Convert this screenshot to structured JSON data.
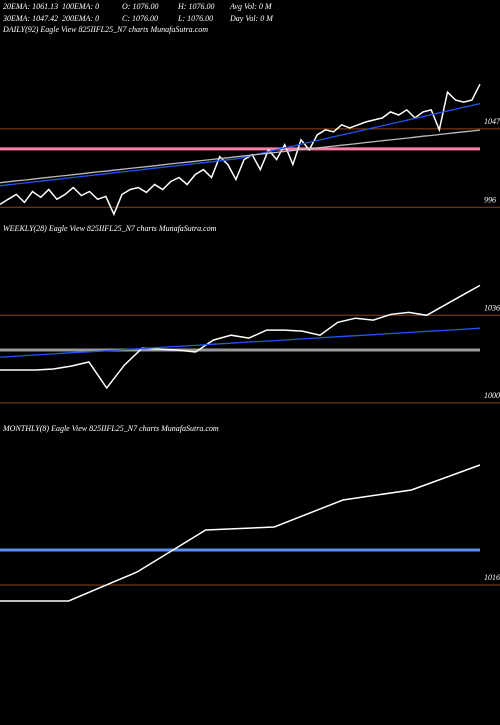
{
  "header": {
    "row1": [
      "20EMA: 1061.13",
      "100EMA: 0",
      "O: 1076.00",
      "H: 1076.00",
      "Avg Vol: 0  M"
    ],
    "row2": [
      "30EMA: 1047.42",
      "200EMA: 0",
      "C: 1076.00",
      "L: 1076.00",
      "Day Vol: 0  M"
    ]
  },
  "chart_data": [
    {
      "type": "line",
      "title": "DAILY(92) Eagle  View  825IIFL25_N7 charts MunafaSutra.com",
      "ylim": [
        991,
        1108
      ],
      "yticks": [
        1047,
        996
      ],
      "tick_color": "#8b4513",
      "reference_lines": [
        {
          "value": 1034,
          "color": "#ff7ca8"
        }
      ],
      "series": [
        {
          "color": "#ffffff",
          "values": [
            997.9,
            1001.2,
            1004.4,
            999.2,
            1006.3,
            1002.5,
            1007.6,
            1001.2,
            1004.4,
            1008.9,
            1003.7,
            1006.3,
            1001.2,
            1003.1,
            991.5,
            1004.4,
            1007.6,
            1008.9,
            1005.7,
            1010.8,
            1007.6,
            1012.8,
            1015.4,
            1010.8,
            1017.3,
            1020.5,
            1015.4,
            1028.9,
            1023.8,
            1014.1,
            1027,
            1030.2,
            1020.5,
            1033.4,
            1027,
            1036.7,
            1023.8,
            1039.9,
            1033.4,
            1043.1,
            1046.4,
            1045.1,
            1049.6,
            1047.6,
            1049.6,
            1051.5,
            1052.8,
            1054.1,
            1058,
            1056,
            1059.3,
            1054.1,
            1058,
            1059.3,
            1046.4,
            1070.9,
            1065.7,
            1064.4,
            1065.7,
            1076
          ]
        },
        {
          "color": "#2255ee",
          "values": [
            1010,
            1010.6,
            1011.2,
            1011.8,
            1012.4,
            1013,
            1013.6,
            1014.2,
            1014.8,
            1015.4,
            1016,
            1016.6,
            1017.2,
            1017.8,
            1018.4,
            1019,
            1019.6,
            1020.2,
            1020.8,
            1021.4,
            1022,
            1022.6,
            1023.2,
            1023.8,
            1024.4,
            1025,
            1025.6,
            1026.2,
            1026.8,
            1027.4,
            1028.6,
            1029.8,
            1031,
            1032.2,
            1033.4,
            1034.6,
            1035.8,
            1037,
            1038.2,
            1039.4,
            1040.6,
            1041.8,
            1043,
            1044.2,
            1045.4,
            1046.6,
            1047.8,
            1049,
            1050.2,
            1051.4,
            1052.6,
            1053.8,
            1055,
            1056.2,
            1057.4,
            1058.6,
            1059.8,
            1061,
            1062.2,
            1063.4
          ]
        },
        {
          "color": "#bbbbbb",
          "values": [
            1012,
            1012.6,
            1013.2,
            1013.7,
            1014.3,
            1014.9,
            1015.5,
            1016.1,
            1016.6,
            1017.2,
            1017.8,
            1018.4,
            1019,
            1019.5,
            1020.1,
            1020.7,
            1021.3,
            1021.9,
            1022.4,
            1023,
            1023.6,
            1024.2,
            1024.8,
            1025.3,
            1025.9,
            1026.5,
            1027.1,
            1027.7,
            1028.2,
            1028.8,
            1029.4,
            1030,
            1030.6,
            1031.1,
            1031.7,
            1032.3,
            1032.9,
            1033.5,
            1034,
            1034.6,
            1035.2,
            1035.8,
            1036.4,
            1036.9,
            1037.5,
            1038.1,
            1038.7,
            1039.3,
            1039.8,
            1040.4,
            1041,
            1041.6,
            1042.2,
            1042.7,
            1043.3,
            1043.9,
            1044.5,
            1045.1,
            1045.6,
            1046.2
          ]
        }
      ]
    },
    {
      "type": "line",
      "title": "WEEKLY(28) Eagle  View  825IIFL25_N7 charts MunafaSutra.com",
      "ylim": [
        995,
        1069
      ],
      "yticks": [
        1036,
        1000
      ],
      "tick_color": "#8b4513",
      "reference_lines": [
        {
          "value": 1021.7,
          "color": "#999999"
        }
      ],
      "series": [
        {
          "color": "#ffffff",
          "values": [
            1013.5,
            1013.5,
            1013.5,
            1013.9,
            1015.1,
            1016.8,
            1006.1,
            1015.5,
            1022.5,
            1022.1,
            1021.7,
            1020.9,
            1025.8,
            1027.8,
            1026.6,
            1029.9,
            1029.9,
            1029.5,
            1027.8,
            1033.1,
            1034.8,
            1034,
            1036.4,
            1037.2,
            1036,
            1040.1,
            1044.2,
            1048.3
          ]
        },
        {
          "color": "#2255ee",
          "values": [
            1018.8,
            1019.2,
            1019.7,
            1020.1,
            1020.6,
            1021,
            1021.4,
            1021.9,
            1022.3,
            1022.8,
            1023.2,
            1023.6,
            1024.1,
            1024.5,
            1025,
            1025.4,
            1025.8,
            1026.3,
            1026.7,
            1027.2,
            1027.6,
            1028,
            1028.5,
            1028.9,
            1029.4,
            1029.8,
            1030.2,
            1030.7
          ]
        }
      ]
    },
    {
      "type": "line",
      "title": "MONTHLY(8) Eagle  View  825IIFL25_N7 charts MunafaSutra.com",
      "ylim": [
        1003.5,
        1096
      ],
      "yticks": [
        1016
      ],
      "tick_color": "#8b4513",
      "reference_lines": [
        {
          "value": 1033.5,
          "color": "#5b8ef0"
        }
      ],
      "series": [
        {
          "color": "#ffffff",
          "values": [
            1008,
            1008,
            1022.5,
            1043.5,
            1045,
            1058.5,
            1063.5,
            1076
          ]
        }
      ]
    }
  ]
}
